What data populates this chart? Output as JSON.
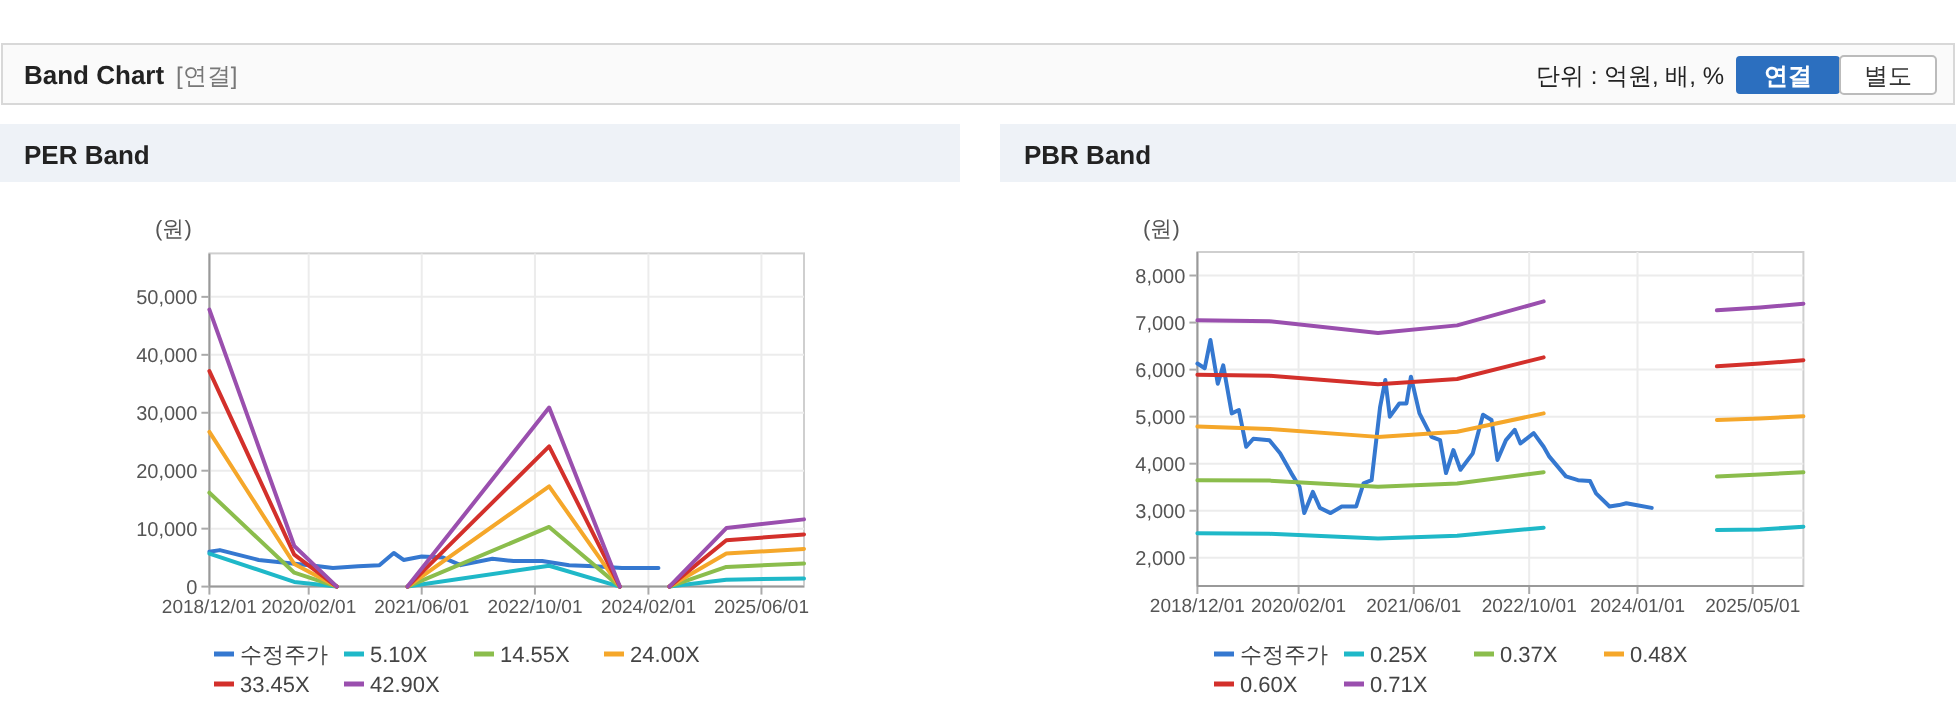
{
  "chart_data": [
    {
      "type": "line",
      "title": "PER Band",
      "ylabel": "(원)",
      "annotations": [
        "Band Chart",
        "[연결]",
        "단위 : 억원, 배, %",
        "연결",
        "별도"
      ],
      "xlim": [
        "2018-12-01",
        "2025-12-01"
      ],
      "xticks": [
        {
          "value": "2018-12-01",
          "label": "2018/12/01"
        },
        {
          "value": "2020-02-01",
          "label": "2020/02/01"
        },
        {
          "value": "2021-06-01",
          "label": "2021/06/01"
        },
        {
          "value": "2022-10-01",
          "label": "2022/10/01"
        },
        {
          "value": "2024-02-01",
          "label": "2024/02/01"
        },
        {
          "value": "2025-06-01",
          "label": "2025/06/01"
        }
      ],
      "ylim": [
        0,
        57500
      ],
      "yticks": [
        0,
        {
          "value": 10000,
          "label": "10,000"
        },
        {
          "value": 20000,
          "label": "20,000"
        },
        {
          "value": 30000,
          "label": "30,000"
        },
        {
          "value": 40000,
          "label": "40,000"
        },
        {
          "value": 50000,
          "label": "50,000"
        }
      ],
      "grid": true,
      "legend": "bottom",
      "marker": "none",
      "line_style": "solid",
      "series": [
        {
          "name": "수정주가",
          "color": "#3578d0",
          "x": [
            "2018-12-01",
            "2019-01-15",
            "2019-07-01",
            "2020-03-15",
            "2020-05-15",
            "2020-09-01",
            "2020-12-01",
            "2021-02-01",
            "2021-03-15",
            "2021-06-01",
            "2021-09-01",
            "2021-11-15",
            "2022-04-01",
            "2022-07-01",
            "2022-11-01",
            "2023-02-25",
            "2023-06-15",
            "2023-10-10",
            "2024-03-15"
          ],
          "values": [
            6000,
            6300,
            4600,
            3500,
            3200,
            3500,
            3700,
            5800,
            4600,
            5200,
            5000,
            3700,
            4800,
            4400,
            4400,
            3700,
            3500,
            3200,
            3200
          ]
        },
        {
          "name": "5.10X",
          "color": "#1fb8c8",
          "x": [
            "2018-12-01",
            "2019-12-01",
            "2020-06-01",
            "2020-09-01",
            "2021-04-01",
            "2022-12-01",
            "2023-10-01",
            "2024-01-01",
            "2024-05-01",
            "2025-01-01",
            "2025-12-01"
          ],
          "values": [
            5700,
            800,
            0,
            null,
            0,
            3600,
            0,
            null,
            0,
            1200,
            1400
          ]
        },
        {
          "name": "14.55X",
          "color": "#8bbd4c",
          "x": [
            "2018-12-01",
            "2019-12-01",
            "2020-06-01",
            "2020-09-01",
            "2021-04-01",
            "2022-12-01",
            "2023-10-01",
            "2024-01-01",
            "2024-05-01",
            "2025-01-01",
            "2025-12-01"
          ],
          "values": [
            16200,
            2400,
            0,
            null,
            0,
            10300,
            0,
            null,
            0,
            3400,
            4000
          ]
        },
        {
          "name": "24.00X",
          "color": "#f5a72a",
          "x": [
            "2018-12-01",
            "2019-12-01",
            "2020-06-01",
            "2020-09-01",
            "2021-04-01",
            "2022-12-01",
            "2023-10-01",
            "2024-01-01",
            "2024-05-01",
            "2025-01-01",
            "2025-12-01"
          ],
          "values": [
            26700,
            3900,
            0,
            null,
            0,
            17300,
            0,
            null,
            0,
            5700,
            6500
          ]
        },
        {
          "name": "33.45X",
          "color": "#d3302b",
          "x": [
            "2018-12-01",
            "2019-12-01",
            "2020-06-01",
            "2020-09-01",
            "2021-04-01",
            "2022-12-01",
            "2023-10-01",
            "2024-01-01",
            "2024-05-01",
            "2025-01-01",
            "2025-12-01"
          ],
          "values": [
            37200,
            5500,
            0,
            null,
            0,
            24200,
            0,
            null,
            0,
            8000,
            9000
          ]
        },
        {
          "name": "42.90X",
          "color": "#9a4fae",
          "x": [
            "2018-12-01",
            "2019-12-01",
            "2020-06-01",
            "2020-09-01",
            "2021-04-01",
            "2022-12-01",
            "2023-10-01",
            "2024-01-01",
            "2024-05-01",
            "2025-01-01",
            "2025-12-01"
          ],
          "values": [
            47800,
            7000,
            0,
            null,
            0,
            30900,
            0,
            null,
            0,
            10100,
            11600
          ]
        }
      ]
    },
    {
      "type": "line",
      "title": "PBR Band",
      "ylabel": "(원)",
      "xlim": [
        "2018-12-01",
        "2025-12-01"
      ],
      "xticks": [
        {
          "value": "2018-12-01",
          "label": "2018/12/01"
        },
        {
          "value": "2020-02-01",
          "label": "2020/02/01"
        },
        {
          "value": "2021-06-01",
          "label": "2021/06/01"
        },
        {
          "value": "2022-10-01",
          "label": "2022/10/01"
        },
        {
          "value": "2024-01-01",
          "label": "2024/01/01"
        },
        {
          "value": "2025-05-01",
          "label": "2025/05/01"
        }
      ],
      "ylim": [
        1400,
        8500
      ],
      "yticks": [
        {
          "value": 2000,
          "label": "2,000"
        },
        {
          "value": 3000,
          "label": "3,000"
        },
        {
          "value": 4000,
          "label": "4,000"
        },
        {
          "value": 5000,
          "label": "5,000"
        },
        {
          "value": 6000,
          "label": "6,000"
        },
        {
          "value": 7000,
          "label": "7,000"
        },
        {
          "value": 8000,
          "label": "8,000"
        }
      ],
      "grid": true,
      "legend": "bottom",
      "marker": "none",
      "line_style": "solid",
      "series": [
        {
          "name": "수정주가",
          "color": "#3578d0",
          "x": [
            "2018-12-01",
            "2019-01-01",
            "2019-01-25",
            "2019-02-25",
            "2019-03-20",
            "2019-04-25",
            "2019-05-25",
            "2019-06-25",
            "2019-07-25",
            "2019-10-01",
            "2019-11-15",
            "2020-01-01",
            "2020-02-05",
            "2020-02-25",
            "2020-04-01",
            "2020-05-01",
            "2020-06-15",
            "2020-08-01",
            "2020-10-01",
            "2020-11-01",
            "2020-12-05",
            "2021-01-10",
            "2021-02-01",
            "2021-02-20",
            "2021-04-01",
            "2021-05-01",
            "2021-05-20",
            "2021-06-25",
            "2021-08-15",
            "2021-09-20",
            "2021-10-15",
            "2021-11-15",
            "2021-12-15",
            "2022-02-05",
            "2022-03-20",
            "2022-04-25",
            "2022-05-20",
            "2022-06-25",
            "2022-08-01",
            "2022-08-25",
            "2022-10-20",
            "2022-12-01",
            "2022-12-25",
            "2023-03-05",
            "2023-04-25",
            "2023-06-15",
            "2023-07-10",
            "2023-09-05",
            "2023-10-15",
            "2023-11-15",
            "2023-12-25",
            "2024-03-01"
          ],
          "values": [
            6130,
            6030,
            6630,
            5700,
            6090,
            5070,
            5140,
            4360,
            4530,
            4500,
            4220,
            3800,
            3510,
            2950,
            3400,
            3060,
            2950,
            3090,
            3090,
            3580,
            3650,
            5210,
            5780,
            5000,
            5280,
            5280,
            5850,
            5070,
            4570,
            4500,
            3800,
            4290,
            3870,
            4220,
            5040,
            4930,
            4080,
            4500,
            4720,
            4430,
            4650,
            4360,
            4150,
            3730,
            3650,
            3630,
            3370,
            3090,
            3120,
            3160,
            3120,
            3060
          ]
        },
        {
          "name": "0.25X",
          "color": "#1fb8c8",
          "x": [
            "2018-12-01",
            "2019-10-01",
            "2021-01-01",
            "2021-12-01",
            "2022-12-01",
            "2024-01-01",
            "2024-12-01",
            "2025-06-01",
            "2025-12-01"
          ],
          "values": [
            2520,
            2510,
            2410,
            2470,
            2640,
            null,
            2590,
            2600,
            2660
          ]
        },
        {
          "name": "0.37X",
          "color": "#8bbd4c",
          "x": [
            "2018-12-01",
            "2019-10-01",
            "2021-01-01",
            "2021-12-01",
            "2022-12-01",
            "2024-01-01",
            "2024-12-01",
            "2025-06-01",
            "2025-12-01"
          ],
          "values": [
            3650,
            3640,
            3510,
            3580,
            3820,
            null,
            3730,
            3770,
            3820
          ]
        },
        {
          "name": "0.48X",
          "color": "#f5a72a",
          "x": [
            "2018-12-01",
            "2019-10-01",
            "2021-01-01",
            "2021-12-01",
            "2022-12-01",
            "2024-01-01",
            "2024-12-01",
            "2025-06-01",
            "2025-12-01"
          ],
          "values": [
            4790,
            4740,
            4570,
            4680,
            5070,
            null,
            4930,
            4960,
            5010
          ]
        },
        {
          "name": "0.60X",
          "color": "#d3302b",
          "x": [
            "2018-12-01",
            "2019-10-01",
            "2021-01-01",
            "2021-12-01",
            "2022-12-01",
            "2024-01-01",
            "2024-12-01",
            "2025-06-01",
            "2025-12-01"
          ],
          "values": [
            5890,
            5870,
            5690,
            5800,
            6260,
            null,
            6070,
            6130,
            6200
          ]
        },
        {
          "name": "0.71X",
          "color": "#9a4fae",
          "x": [
            "2018-12-01",
            "2019-10-01",
            "2021-01-01",
            "2021-12-01",
            "2022-12-01",
            "2024-01-01",
            "2024-12-01",
            "2025-06-01",
            "2025-12-01"
          ],
          "values": [
            7050,
            7030,
            6780,
            6940,
            7450,
            null,
            7260,
            7320,
            7400
          ]
        }
      ]
    }
  ]
}
